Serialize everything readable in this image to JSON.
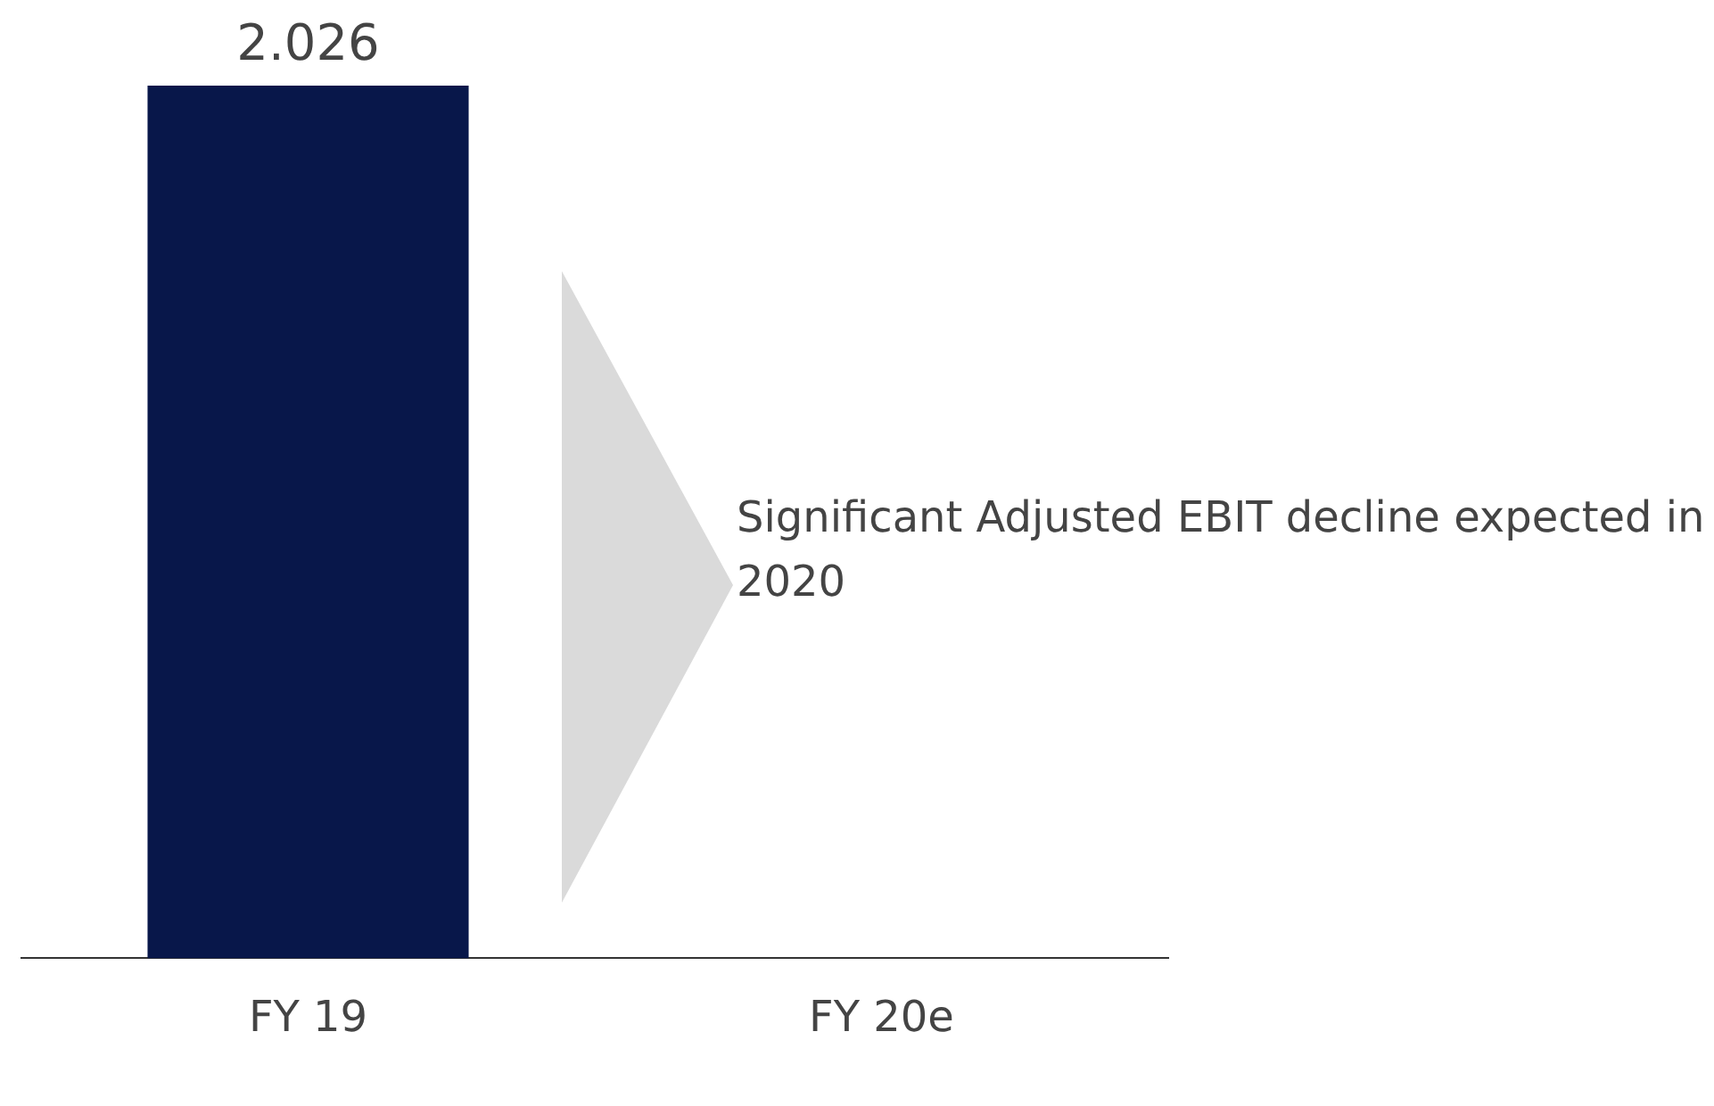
{
  "chart_data": {
    "type": "bar",
    "categories": [
      "FY 19",
      "FY 20e"
    ],
    "values": [
      2.026,
      null
    ],
    "color": "#08174a",
    "data_labels": true,
    "annotations": [
      "Significant Adjusted EBIT decline expected in 2020"
    ]
  }
}
